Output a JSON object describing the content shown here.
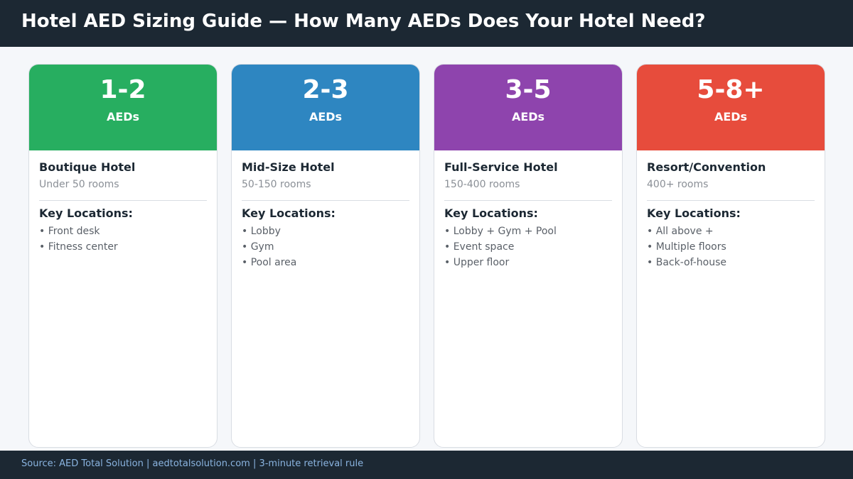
{
  "title": "Hotel AED Sizing Guide — How Many AEDs Does Your Hotel Need?",
  "cards": [
    {
      "count": "1-2",
      "unit": "AEDs",
      "color": "#27ae60",
      "hotel_type": "Boutique Hotel",
      "rooms": "Under 50 rooms",
      "locations_heading": "Key Locations:",
      "locations": [
        "• Front desk",
        "• Fitness center"
      ]
    },
    {
      "count": "2-3",
      "unit": "AEDs",
      "color": "#2e86c1",
      "hotel_type": "Mid-Size Hotel",
      "rooms": "50-150 rooms",
      "locations_heading": "Key Locations:",
      "locations": [
        "• Lobby",
        "• Gym",
        "• Pool area"
      ]
    },
    {
      "count": "3-5",
      "unit": "AEDs",
      "color": "#8e44ad",
      "hotel_type": "Full-Service Hotel",
      "rooms": "150-400 rooms",
      "locations_heading": "Key Locations:",
      "locations": [
        "• Lobby + Gym + Pool",
        "• Event space",
        "• Upper floor"
      ]
    },
    {
      "count": "5-8+",
      "unit": "AEDs",
      "color": "#e74c3c",
      "hotel_type": "Resort/Convention",
      "rooms": "400+ rooms",
      "locations_heading": "Key Locations:",
      "locations": [
        "• All above +",
        "• Multiple floors",
        "• Back-of-house"
      ]
    }
  ],
  "footer": "Source: AED Total Solution  |  aedtotalsolution.com  |  3-minute retrieval rule"
}
